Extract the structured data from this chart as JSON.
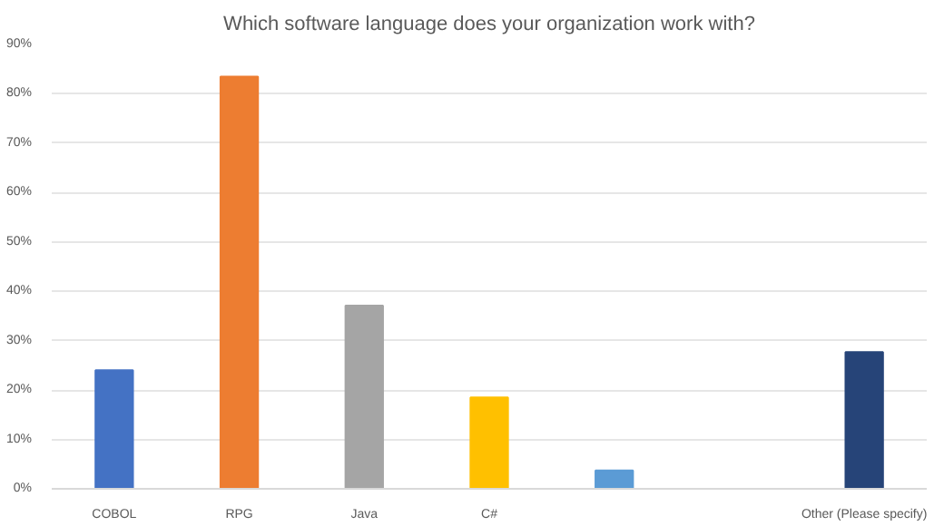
{
  "chart_data": {
    "type": "bar",
    "title": "Which software language does your organization work with?",
    "categories": [
      "COBOL",
      "RPG",
      "Java",
      "C#",
      null,
      null,
      "Other (Please specify)"
    ],
    "values": [
      24.0,
      83.5,
      37.1,
      18.5,
      3.7,
      0,
      27.7
    ],
    "colors": [
      "#4472c4",
      "#ed7d31",
      "#a5a5a5",
      "#ffc000",
      "#5b9bd5",
      "#70ad47",
      "#264478"
    ],
    "ylim": [
      0,
      90
    ],
    "yticks": [
      {
        "value": 0,
        "label": "0%"
      },
      {
        "value": 10,
        "label": "10%"
      },
      {
        "value": 20,
        "label": "20%"
      },
      {
        "value": 30,
        "label": "30%"
      },
      {
        "value": 40,
        "label": "40%"
      },
      {
        "value": 50,
        "label": "50%"
      },
      {
        "value": 60,
        "label": "60%"
      },
      {
        "value": 70,
        "label": "70%"
      },
      {
        "value": 80,
        "label": "80%"
      },
      {
        "value": 90,
        "label": "90%"
      }
    ],
    "grid": "y"
  }
}
